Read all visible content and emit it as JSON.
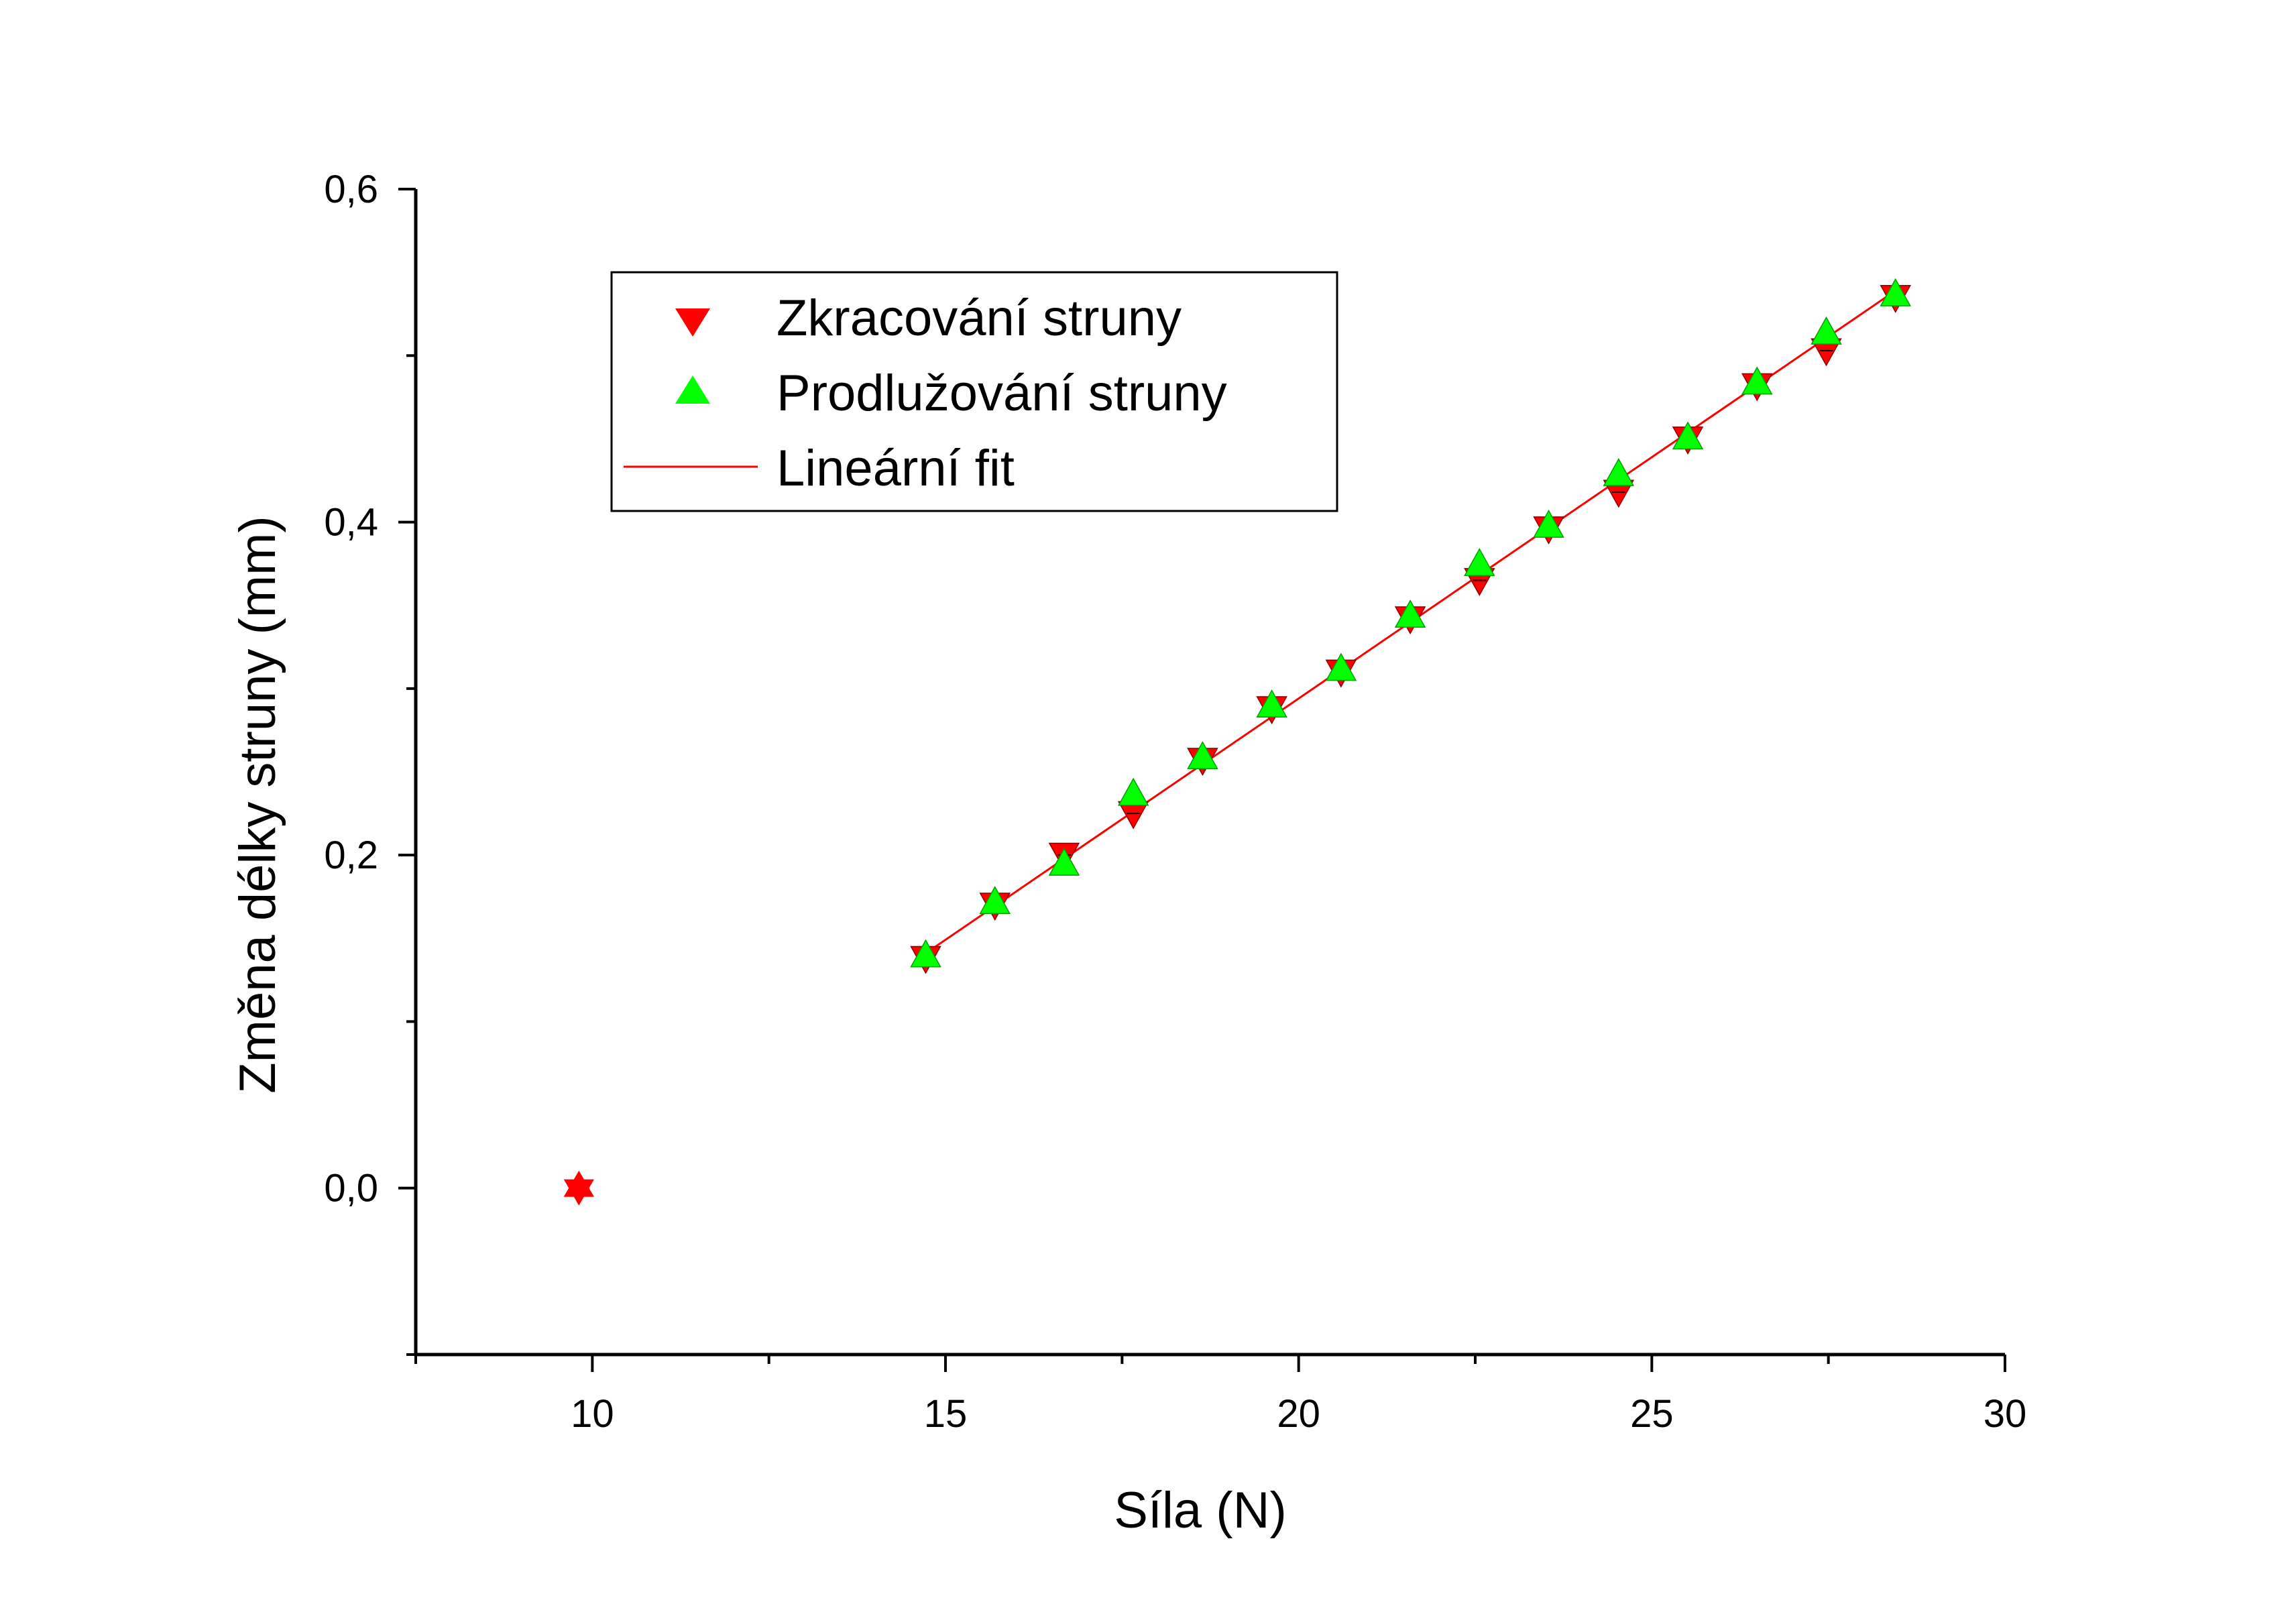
{
  "chart_data": {
    "type": "scatter",
    "title": "",
    "xlabel": "Síla (N)",
    "ylabel": "Změna délky struny (mm)",
    "xlim": [
      7.5,
      30
    ],
    "ylim": [
      -0.1,
      0.6
    ],
    "x_ticks": [
      10,
      15,
      20,
      25,
      30
    ],
    "x_tick_labels": [
      "10",
      "15",
      "20",
      "25",
      "30"
    ],
    "y_ticks": [
      0.0,
      0.2,
      0.4,
      0.6
    ],
    "y_tick_labels": [
      "0,0",
      "0,2",
      "0,4",
      "0,6"
    ],
    "grid": false,
    "legend_position": "top-left",
    "series": [
      {
        "name": "Zkracování struny",
        "marker": "triangle-down",
        "color": "#ff0000",
        "x": [
          9.81,
          14.72,
          15.7,
          16.68,
          17.66,
          18.64,
          19.62,
          20.6,
          21.58,
          22.56,
          23.54,
          24.53,
          25.51,
          26.49,
          27.47,
          28.45
        ],
        "y": [
          0.0,
          0.138,
          0.17,
          0.2,
          0.225,
          0.257,
          0.288,
          0.31,
          0.342,
          0.365,
          0.396,
          0.418,
          0.45,
          0.482,
          0.503,
          0.535
        ]
      },
      {
        "name": "Prodlužování struny",
        "marker": "triangle-up",
        "color": "#00ff00",
        "x": [
          14.72,
          15.7,
          16.68,
          17.66,
          18.64,
          19.62,
          20.6,
          21.58,
          22.56,
          23.54,
          24.53,
          25.51,
          26.49,
          27.47,
          28.45
        ],
        "y": [
          0.14,
          0.172,
          0.195,
          0.237,
          0.259,
          0.29,
          0.312,
          0.344,
          0.375,
          0.398,
          0.429,
          0.451,
          0.484,
          0.514,
          0.537
        ]
      },
      {
        "name": "Lineární fit",
        "type": "line",
        "color": "#ff0000",
        "x": [
          14.72,
          28.45
        ],
        "y": [
          0.141,
          0.539
        ]
      }
    ],
    "outlier_marker": {
      "marker": "star",
      "color": "#ff0000",
      "x": 9.81,
      "y": 0.0
    }
  }
}
